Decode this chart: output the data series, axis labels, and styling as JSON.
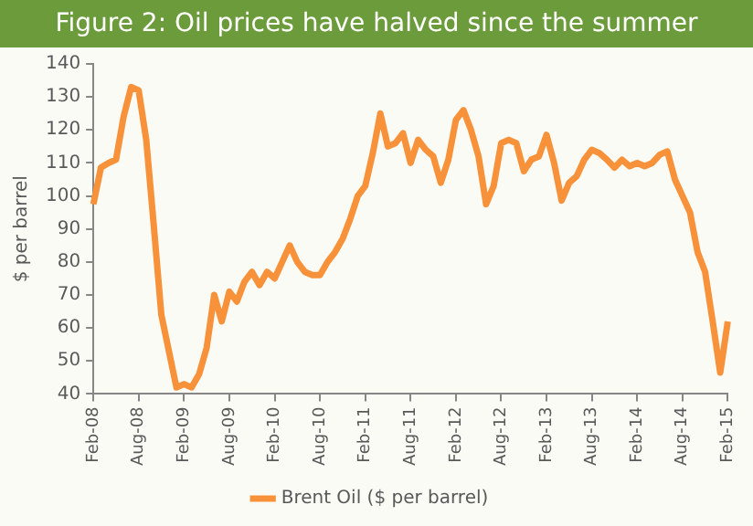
{
  "chart_data": {
    "type": "line",
    "title": "Figure 2: Oil prices have halved since the summer",
    "ylabel": "$ per barrel",
    "categories": [
      "Feb-08",
      null,
      null,
      null,
      null,
      null,
      "Aug-08",
      null,
      null,
      null,
      null,
      null,
      "Feb-09",
      null,
      null,
      null,
      null,
      null,
      "Aug-09",
      null,
      null,
      null,
      null,
      null,
      "Feb-10",
      null,
      null,
      null,
      null,
      null,
      "Aug-10",
      null,
      null,
      null,
      null,
      null,
      "Feb-11",
      null,
      null,
      null,
      null,
      null,
      "Aug-11",
      null,
      null,
      null,
      null,
      null,
      "Feb-12",
      null,
      null,
      null,
      null,
      null,
      "Aug-12",
      null,
      null,
      null,
      null,
      null,
      "Feb-13",
      null,
      null,
      null,
      null,
      null,
      "Aug-13",
      null,
      null,
      null,
      null,
      null,
      "Feb-14",
      null,
      null,
      null,
      null,
      null,
      "Aug-14",
      null,
      null,
      null,
      null,
      null,
      "Feb-15"
    ],
    "series": [
      {
        "name": "Brent Oil ($ per barrel)",
        "color": "#f7923a",
        "values": [
          97.5,
          108.6,
          110,
          111,
          124,
          133,
          132,
          117,
          91,
          64,
          53,
          42,
          43,
          42,
          46,
          54,
          70,
          62,
          71,
          68,
          74,
          77,
          73,
          77,
          75,
          80,
          85,
          80,
          77,
          76,
          76,
          80,
          83,
          87,
          93,
          100,
          103,
          113,
          125,
          115,
          116,
          119,
          110,
          117,
          114,
          112,
          104,
          111,
          123,
          126,
          120,
          112,
          97.5,
          103,
          116,
          117,
          116,
          107.5,
          111,
          112,
          118.5,
          110,
          98.6,
          104,
          106,
          111,
          114,
          113,
          111,
          108.6,
          111,
          109,
          110,
          109,
          110,
          112.5,
          113.5,
          105,
          100,
          95,
          83,
          77,
          62,
          46.5,
          62
        ]
      }
    ],
    "ylim": [
      40,
      140
    ],
    "yticks": [
      40,
      50,
      60,
      70,
      80,
      90,
      100,
      110,
      120,
      130,
      140
    ],
    "grid": false,
    "legend": "bottom",
    "marker": "none",
    "line_style": "solid"
  }
}
